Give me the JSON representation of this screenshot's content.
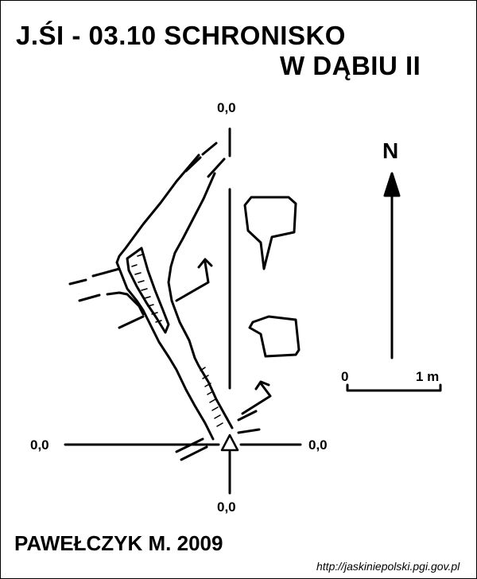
{
  "title": {
    "line1": "J.ŚI - 03.10  SCHRONISKO",
    "line2": "W DĄBIU II"
  },
  "axis_labels": {
    "top": "0,0",
    "bottom": "0,0",
    "left": "0,0",
    "right": "0,0"
  },
  "north_label": "N",
  "scale": {
    "start": "0",
    "end": "1 m"
  },
  "author": "PAWEŁCZYK M. 2009",
  "source": "http://jaskiniepolski.pgi.gov.pl"
}
